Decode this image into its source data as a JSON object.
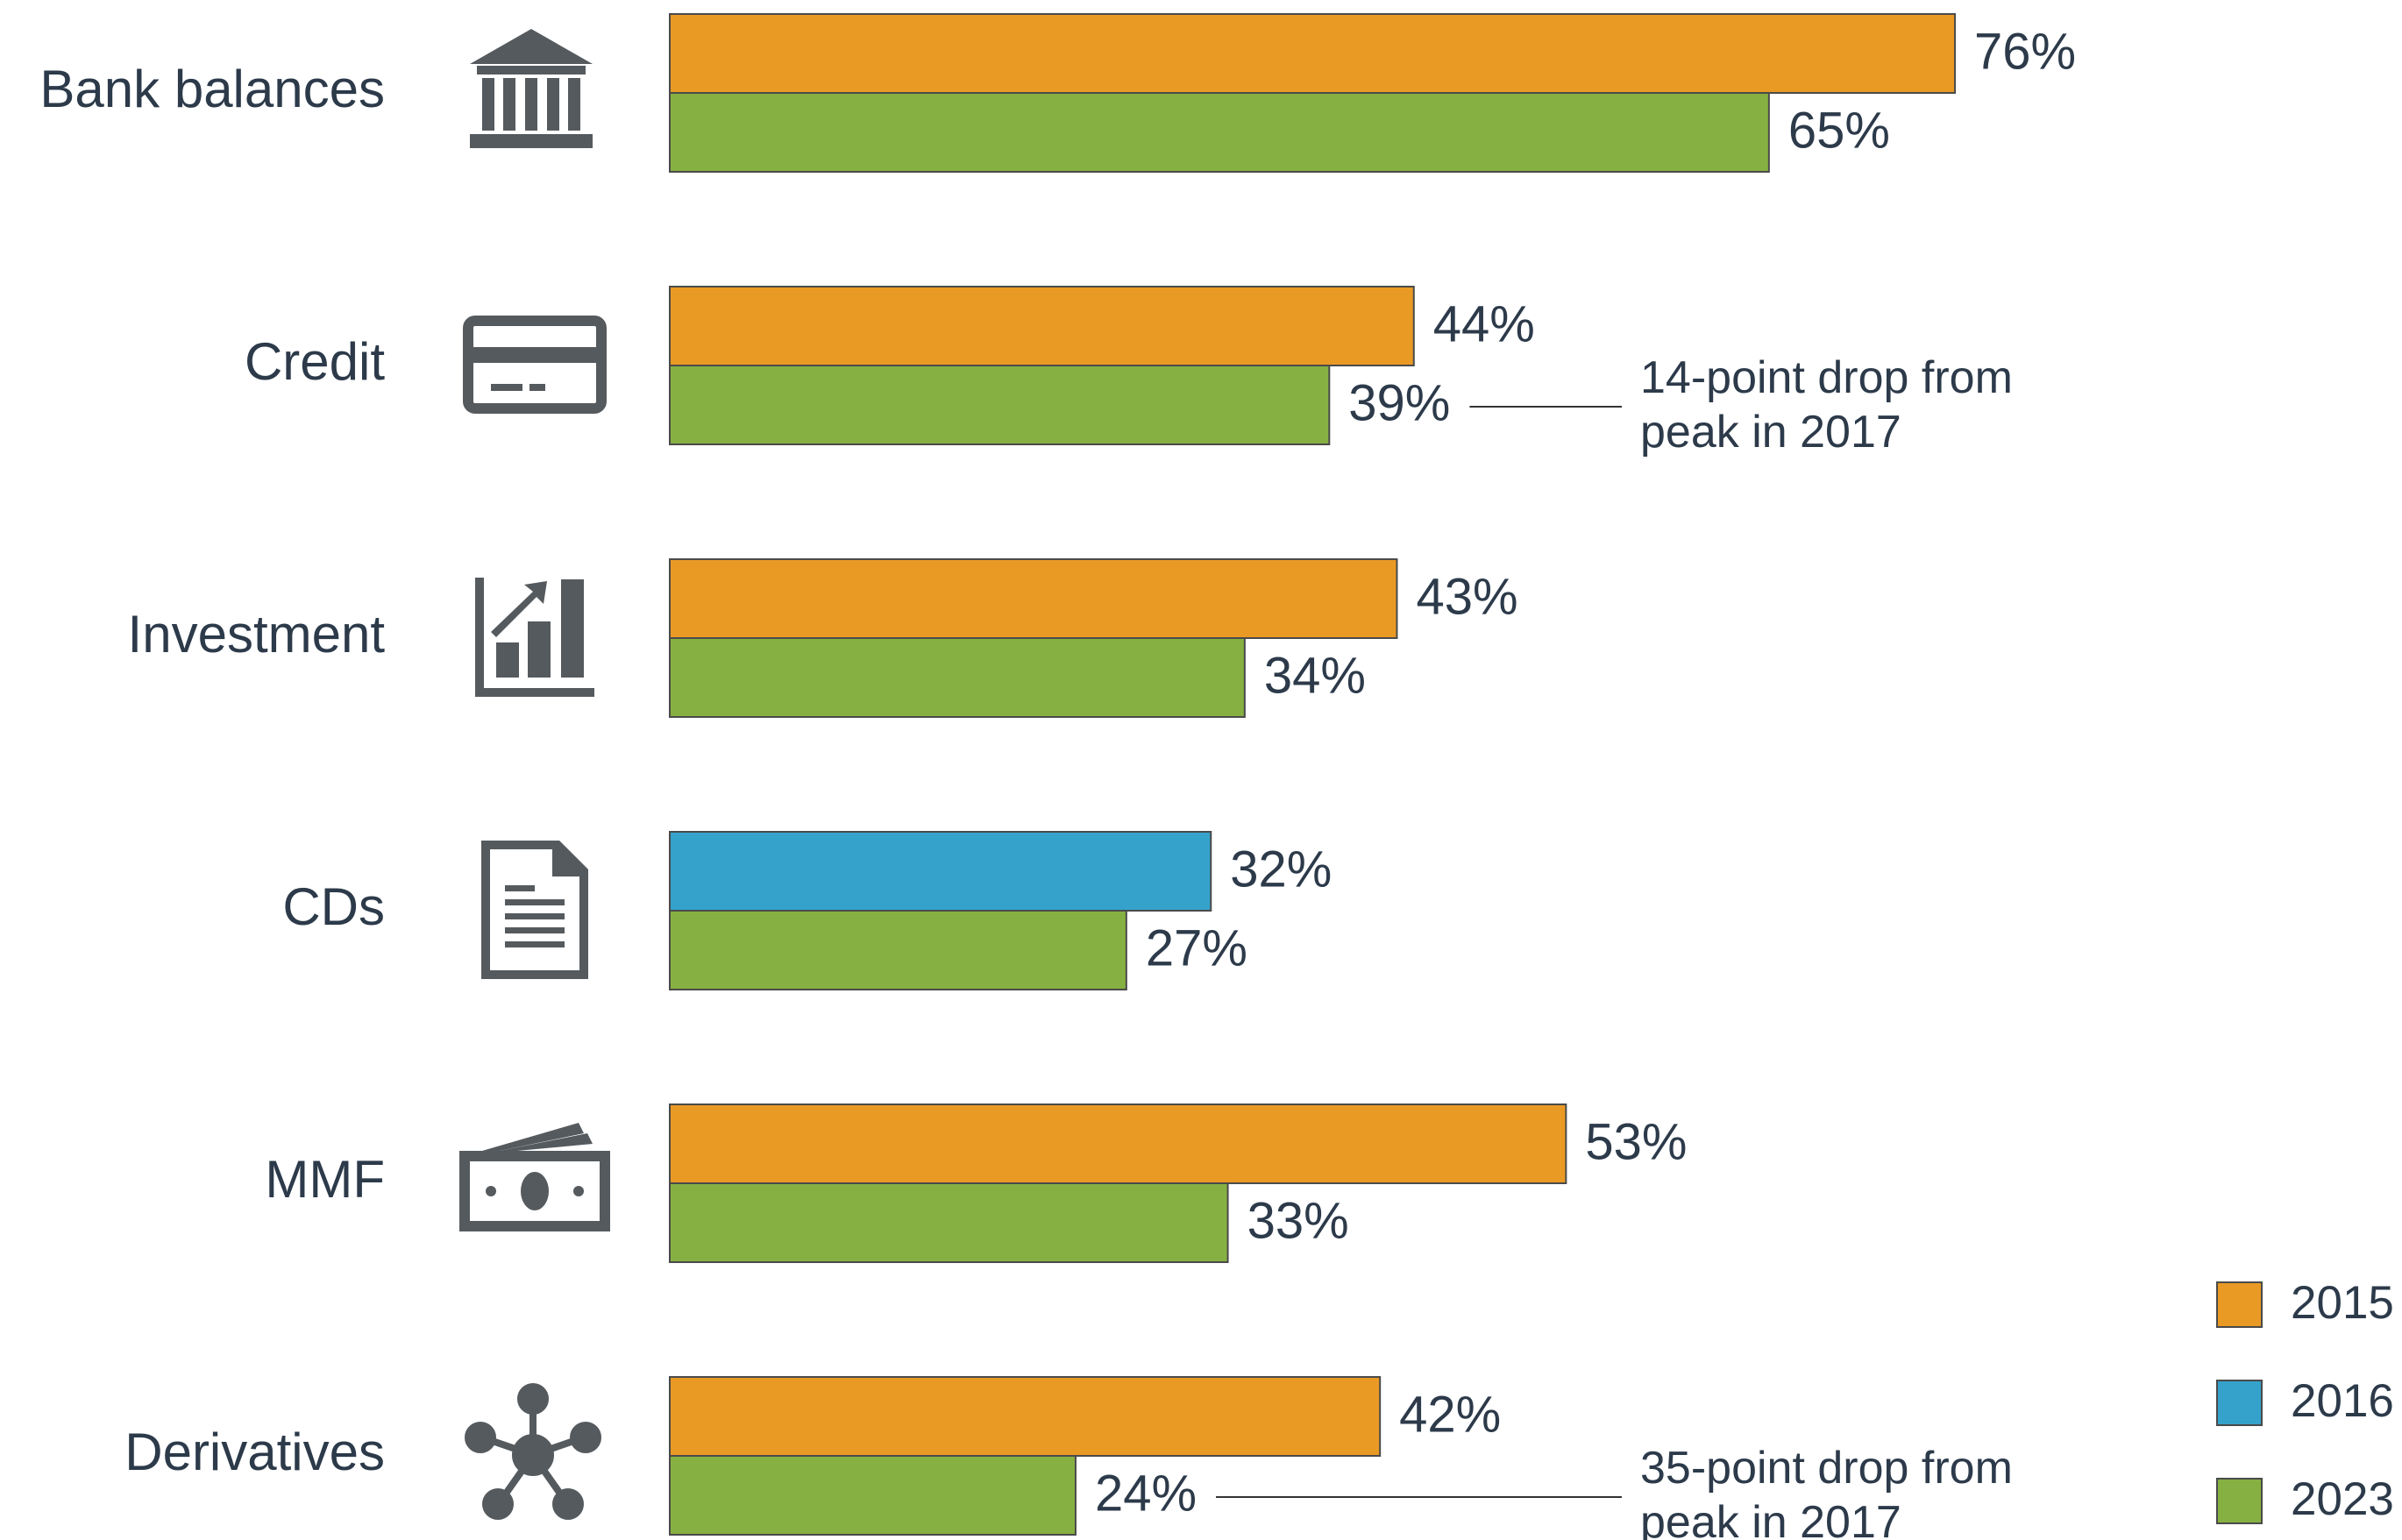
{
  "chart_data": {
    "type": "bar",
    "orientation": "horizontal",
    "categories": [
      "Bank balances",
      "Credit",
      "Investment",
      "CDs",
      "MMF",
      "Derivatives"
    ],
    "series": [
      {
        "name": "2015",
        "color": "#E99A25",
        "values": [
          76,
          44,
          43,
          null,
          53,
          42
        ],
        "value_labels": [
          "76%",
          "44%",
          "43%",
          null,
          "53%",
          "42%"
        ]
      },
      {
        "name": "2016",
        "color": "#35A2CB",
        "values": [
          null,
          null,
          null,
          32,
          null,
          null
        ],
        "value_labels": [
          null,
          null,
          null,
          "32%",
          null,
          null
        ]
      },
      {
        "name": "2023",
        "color": "#86B142",
        "values": [
          65,
          39,
          34,
          27,
          33,
          24
        ],
        "value_labels": [
          "65%",
          "39%",
          "34%",
          "27%",
          "33%",
          "24%"
        ]
      }
    ],
    "annotations": [
      "14-point drop from peak in 2017",
      "35-point drop from peak in 2017"
    ],
    "legend": "bottom-right"
  }
}
